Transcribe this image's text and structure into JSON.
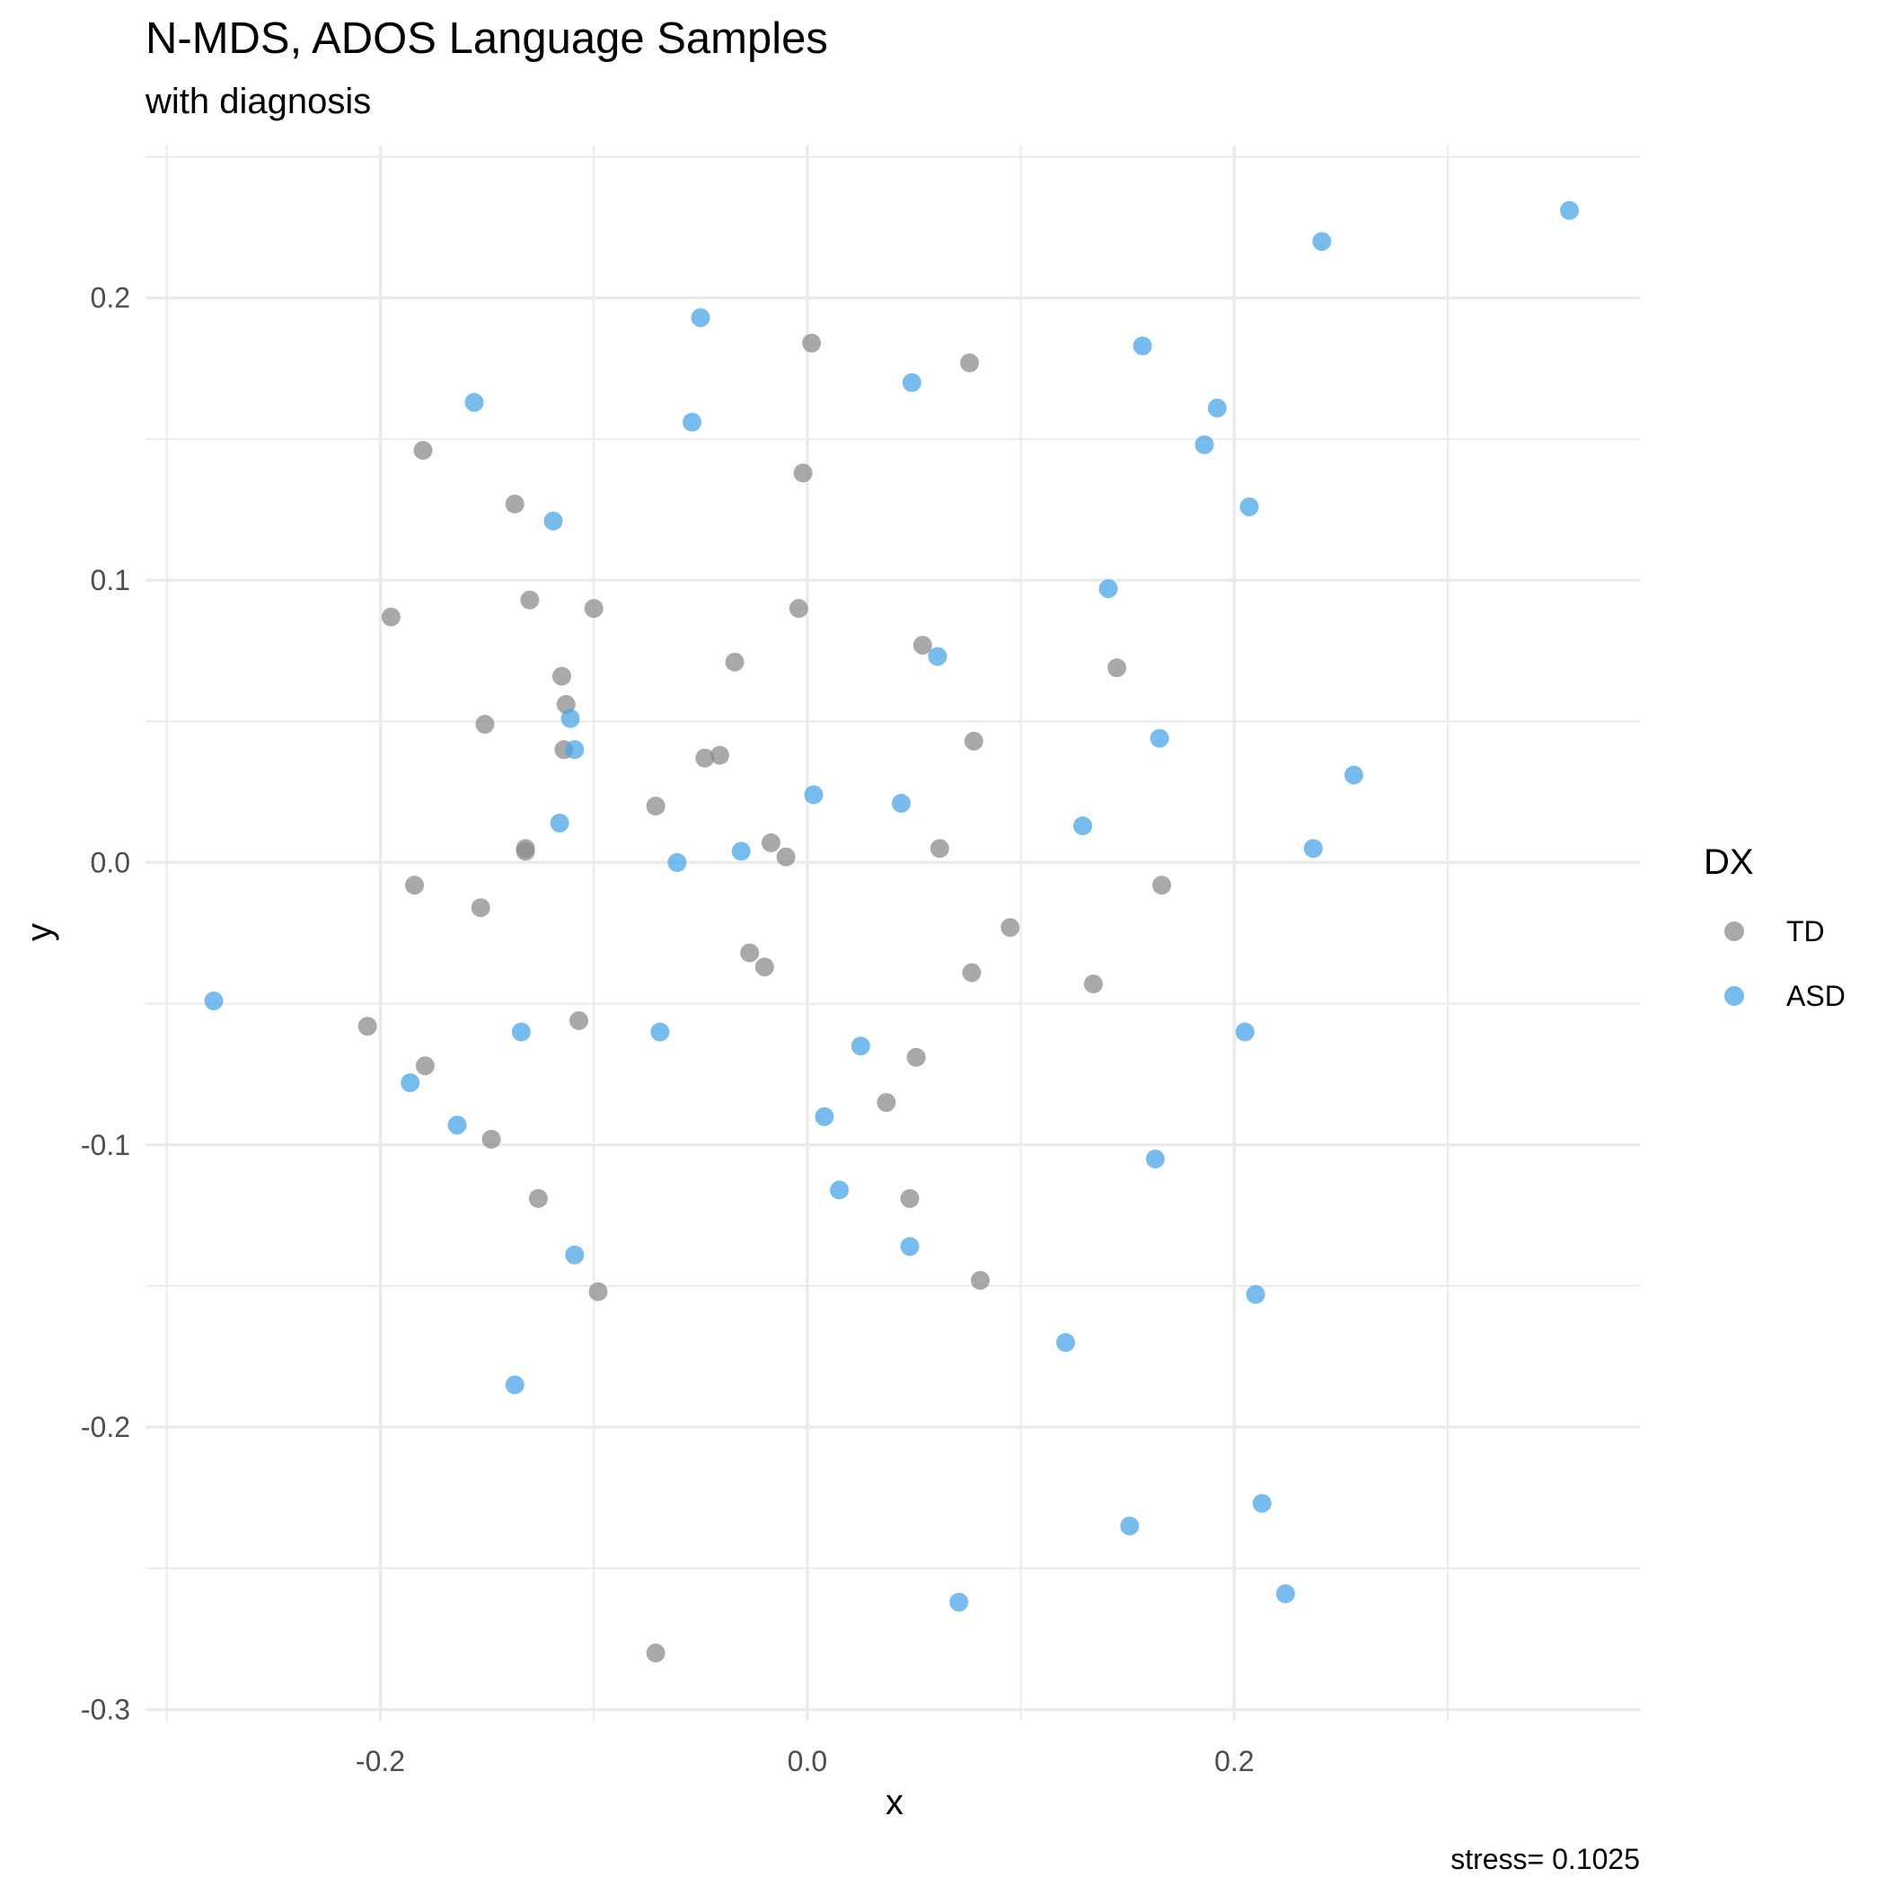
{
  "chart_data": {
    "type": "scatter",
    "title": "N-MDS, ADOS Language Samples",
    "subtitle": "with diagnosis",
    "xlabel": "x",
    "ylabel": "y",
    "caption": "stress= 0.1025",
    "xlim": [
      -0.31,
      0.39
    ],
    "ylim": [
      -0.304,
      0.254
    ],
    "x_ticks": [
      -0.2,
      0.0,
      0.2
    ],
    "x_tick_labels": [
      "-0.2",
      "0.0",
      "0.2"
    ],
    "y_ticks": [
      -0.3,
      -0.2,
      -0.1,
      0.0,
      0.1,
      0.2
    ],
    "y_tick_labels": [
      "-0.3",
      "-0.2",
      "-0.1",
      "0.0",
      "0.1",
      "0.2"
    ],
    "grid": true,
    "legend_position": "right",
    "legend": {
      "title": "DX",
      "entries": [
        "TD",
        "ASD"
      ]
    },
    "colors": {
      "TD": "#8c8c8c",
      "ASD": "#4aa5e6",
      "grid": "#ebebeb",
      "text": "#000000",
      "tick_text": "#4d4d4d"
    },
    "series": [
      {
        "name": "TD",
        "points": [
          [
            0.002,
            0.184
          ],
          [
            0.076,
            0.177
          ],
          [
            -0.18,
            0.146
          ],
          [
            -0.002,
            0.138
          ],
          [
            -0.137,
            0.127
          ],
          [
            -0.13,
            0.093
          ],
          [
            -0.1,
            0.09
          ],
          [
            -0.004,
            0.09
          ],
          [
            -0.195,
            0.087
          ],
          [
            0.054,
            0.077
          ],
          [
            -0.034,
            0.071
          ],
          [
            0.145,
            0.069
          ],
          [
            -0.115,
            0.066
          ],
          [
            -0.113,
            0.056
          ],
          [
            -0.151,
            0.049
          ],
          [
            0.078,
            0.043
          ],
          [
            -0.114,
            0.04
          ],
          [
            -0.041,
            0.038
          ],
          [
            -0.048,
            0.037
          ],
          [
            -0.071,
            0.02
          ],
          [
            -0.017,
            0.007
          ],
          [
            -0.132,
            0.005
          ],
          [
            -0.132,
            0.004
          ],
          [
            0.062,
            0.005
          ],
          [
            -0.01,
            0.002
          ],
          [
            -0.184,
            -0.008
          ],
          [
            0.166,
            -0.008
          ],
          [
            -0.153,
            -0.016
          ],
          [
            0.095,
            -0.023
          ],
          [
            -0.027,
            -0.032
          ],
          [
            -0.02,
            -0.037
          ],
          [
            0.077,
            -0.039
          ],
          [
            0.134,
            -0.043
          ],
          [
            -0.107,
            -0.056
          ],
          [
            -0.206,
            -0.058
          ],
          [
            -0.179,
            -0.072
          ],
          [
            0.051,
            -0.069
          ],
          [
            0.037,
            -0.085
          ],
          [
            -0.148,
            -0.098
          ],
          [
            -0.126,
            -0.119
          ],
          [
            0.048,
            -0.119
          ],
          [
            0.081,
            -0.148
          ],
          [
            -0.098,
            -0.152
          ],
          [
            -0.071,
            -0.28
          ]
        ]
      },
      {
        "name": "ASD",
        "points": [
          [
            0.357,
            0.231
          ],
          [
            0.241,
            0.22
          ],
          [
            -0.05,
            0.193
          ],
          [
            0.157,
            0.183
          ],
          [
            0.049,
            0.17
          ],
          [
            -0.156,
            0.163
          ],
          [
            0.192,
            0.161
          ],
          [
            -0.054,
            0.156
          ],
          [
            0.186,
            0.148
          ],
          [
            0.207,
            0.126
          ],
          [
            -0.119,
            0.121
          ],
          [
            0.141,
            0.097
          ],
          [
            0.061,
            0.073
          ],
          [
            -0.111,
            0.051
          ],
          [
            0.165,
            0.044
          ],
          [
            -0.109,
            0.04
          ],
          [
            0.256,
            0.031
          ],
          [
            0.003,
            0.024
          ],
          [
            0.044,
            0.021
          ],
          [
            -0.116,
            0.014
          ],
          [
            0.129,
            0.013
          ],
          [
            0.237,
            0.005
          ],
          [
            -0.031,
            0.004
          ],
          [
            -0.061,
            0.0
          ],
          [
            -0.278,
            -0.049
          ],
          [
            -0.134,
            -0.06
          ],
          [
            -0.069,
            -0.06
          ],
          [
            0.205,
            -0.06
          ],
          [
            0.025,
            -0.065
          ],
          [
            -0.186,
            -0.078
          ],
          [
            -0.164,
            -0.093
          ],
          [
            0.008,
            -0.09
          ],
          [
            0.163,
            -0.105
          ],
          [
            0.015,
            -0.116
          ],
          [
            0.048,
            -0.136
          ],
          [
            -0.109,
            -0.139
          ],
          [
            0.21,
            -0.153
          ],
          [
            0.121,
            -0.17
          ],
          [
            -0.137,
            -0.185
          ],
          [
            0.213,
            -0.227
          ],
          [
            0.151,
            -0.235
          ],
          [
            0.224,
            -0.259
          ],
          [
            0.071,
            -0.262
          ]
        ]
      }
    ]
  }
}
